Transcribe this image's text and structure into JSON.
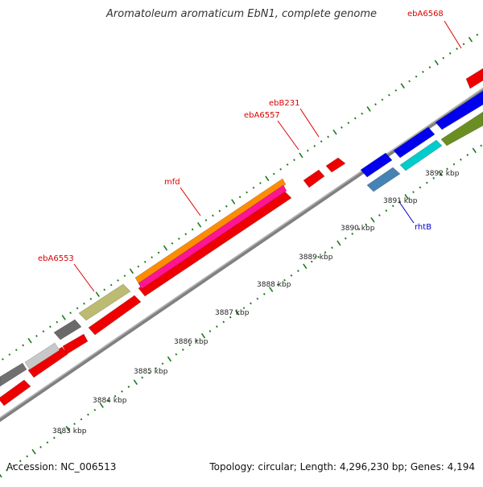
{
  "title": "Aromatoleum aromaticum EbN1, complete genome",
  "footer": {
    "accession": "Accession: NC_006513",
    "topology": "Topology: circular; Length: 4,296,230 bp; Genes: 4,194"
  },
  "colors": {
    "background": "#ffffff",
    "backbone": "#808080",
    "tick_green": "#1a7a1a",
    "label_red": "#dd0000",
    "label_blue": "#0000cc"
  },
  "tick_labels": [
    {
      "id": "3883",
      "text": "3883 kbp"
    },
    {
      "id": "3884",
      "text": "3884 kbp"
    },
    {
      "id": "3885",
      "text": "3885 kbp"
    },
    {
      "id": "3886",
      "text": "3886 kbp"
    },
    {
      "id": "3887",
      "text": "3887 kbp"
    },
    {
      "id": "3888",
      "text": "3888 kbp"
    },
    {
      "id": "3889",
      "text": "3889 kbp"
    },
    {
      "id": "3890",
      "text": "3890 kbp"
    },
    {
      "id": "3891",
      "text": "3891 kbp"
    },
    {
      "id": "3892",
      "text": "3892 kbp"
    }
  ],
  "gene_labels": [
    {
      "id": "ebA6568",
      "text": "ebA6568",
      "color": "red"
    },
    {
      "id": "ebB231",
      "text": "ebB231",
      "color": "red"
    },
    {
      "id": "ebA6557",
      "text": "ebA6557",
      "color": "red"
    },
    {
      "id": "mfd",
      "text": "mfd",
      "color": "red"
    },
    {
      "id": "ebA6553",
      "text": "ebA6553",
      "color": "red"
    },
    {
      "id": "rhtB",
      "text": "rhtB",
      "color": "blue"
    }
  ],
  "genes": [
    {
      "name": "gene-red-1",
      "color": "#ee0000"
    },
    {
      "name": "gene-red-2",
      "color": "#ee0000"
    },
    {
      "name": "gene-red-3",
      "color": "#ee0000"
    },
    {
      "name": "gene-red-4",
      "color": "#ee0000"
    },
    {
      "name": "gene-red-5",
      "color": "#ee0000"
    },
    {
      "name": "gene-red-6",
      "color": "#ee0000"
    },
    {
      "name": "gene-red-7",
      "color": "#ee0000"
    },
    {
      "name": "gene-dark-gray-1",
      "color": "#707070"
    },
    {
      "name": "gene-dark-gray-2",
      "color": "#6a6a6a"
    },
    {
      "name": "gene-light-gray",
      "color": "#c8c8c8"
    },
    {
      "name": "gene-khaki",
      "color": "#bdbb72"
    },
    {
      "name": "gene-orange",
      "color": "#ff8c00"
    },
    {
      "name": "gene-pink",
      "color": "#ff1493"
    },
    {
      "name": "gene-mfd-red",
      "color": "#ee0000"
    },
    {
      "name": "gene-blue-1",
      "color": "#0000ee"
    },
    {
      "name": "gene-blue-2",
      "color": "#0000ee"
    },
    {
      "name": "gene-blue-3",
      "color": "#0000ee"
    },
    {
      "name": "gene-steelblue",
      "color": "#4682b4"
    },
    {
      "name": "gene-cyan",
      "color": "#00cccc"
    },
    {
      "name": "gene-olive",
      "color": "#6b8e23"
    }
  ]
}
